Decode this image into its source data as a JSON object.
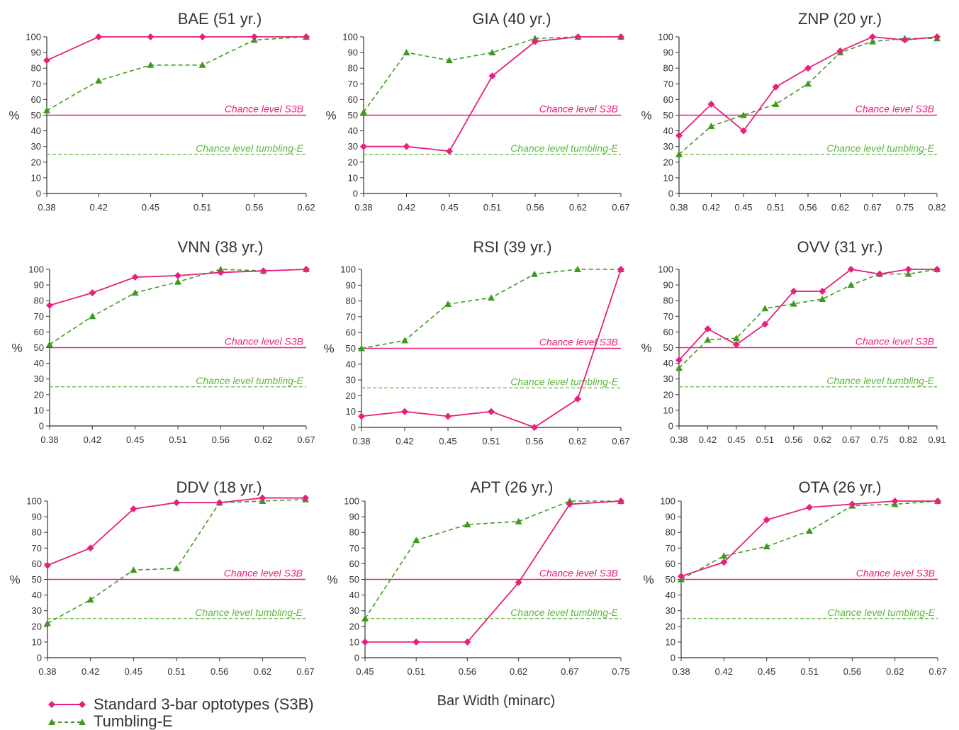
{
  "x_label": "Bar Width (minarc)",
  "y_unit": "%",
  "legend": [
    {
      "label": "Standard 3-bar optotypes (S3B)",
      "color": "#e8207c",
      "marker": "diamond",
      "dash": "solid"
    },
    {
      "label": "Tumbling-E",
      "color": "#3d9a1f",
      "marker": "triangle",
      "dash": "dashed"
    }
  ],
  "chance_lines": [
    {
      "label": "Chance level S3B",
      "value": 50,
      "color": "#e8207c",
      "dash": "solid"
    },
    {
      "label": "Chance level tumbling-E",
      "value": 25,
      "color": "#5cb83c",
      "dash": "dashed"
    }
  ],
  "chart_data": [
    {
      "type": "line",
      "title": "BAE (51 yr.)",
      "categories": [
        "0.38",
        "0.42",
        "0.45",
        "0.51",
        "0.56",
        "0.62"
      ],
      "ylim": [
        0,
        100
      ],
      "yticks": [
        0,
        10,
        20,
        30,
        40,
        50,
        60,
        70,
        80,
        90,
        100
      ],
      "series": [
        {
          "name": "Standard 3-bar optotypes (S3B)",
          "values": [
            85,
            100,
            100,
            100,
            100,
            100
          ]
        },
        {
          "name": "Tumbling-E",
          "values": [
            53,
            72,
            82,
            82,
            98,
            100
          ]
        }
      ]
    },
    {
      "type": "line",
      "title": "GIA (40 yr.)",
      "categories": [
        "0.38",
        "0.42",
        "0.45",
        "0.51",
        "0.56",
        "0.62",
        "0.67"
      ],
      "ylim": [
        0,
        100
      ],
      "yticks": [
        0,
        10,
        20,
        30,
        40,
        50,
        60,
        70,
        80,
        90,
        100
      ],
      "series": [
        {
          "name": "Standard 3-bar optotypes (S3B)",
          "values": [
            30,
            30,
            27,
            75,
            97,
            100,
            100
          ]
        },
        {
          "name": "Tumbling-E",
          "values": [
            52,
            90,
            85,
            90,
            99,
            100,
            100
          ]
        }
      ]
    },
    {
      "type": "line",
      "title": "ZNP (20 yr.)",
      "categories": [
        "0.38",
        "0.42",
        "0.45",
        "0.51",
        "0.56",
        "0.62",
        "0.67",
        "0.75",
        "0.82"
      ],
      "ylim": [
        0,
        100
      ],
      "yticks": [
        0,
        10,
        20,
        30,
        40,
        50,
        60,
        70,
        80,
        90,
        100
      ],
      "series": [
        {
          "name": "Standard 3-bar optotypes (S3B)",
          "values": [
            37,
            57,
            40,
            68,
            80,
            91,
            100,
            98,
            100
          ]
        },
        {
          "name": "Tumbling-E",
          "values": [
            25,
            43,
            50,
            57,
            70,
            90,
            97,
            99,
            99
          ]
        }
      ]
    },
    {
      "type": "line",
      "title": "VNN (38 yr.)",
      "categories": [
        "0.38",
        "0.42",
        "0.45",
        "0.51",
        "0.56",
        "0.62",
        "0.67"
      ],
      "ylim": [
        0,
        100
      ],
      "yticks": [
        0,
        10,
        20,
        30,
        40,
        50,
        60,
        70,
        80,
        90,
        100
      ],
      "series": [
        {
          "name": "Standard 3-bar optotypes (S3B)",
          "values": [
            77,
            85,
            95,
            96,
            98,
            99,
            100
          ]
        },
        {
          "name": "Tumbling-E",
          "values": [
            52,
            70,
            85,
            92,
            100,
            99,
            100
          ]
        }
      ]
    },
    {
      "type": "line",
      "title": "RSI (39 yr.)",
      "categories": [
        "0.38",
        "0.42",
        "0.45",
        "0.51",
        "0.56",
        "0.62",
        "0.67"
      ],
      "ylim": [
        0,
        100
      ],
      "yticks": [
        0,
        10,
        20,
        30,
        40,
        50,
        60,
        70,
        80,
        90,
        100
      ],
      "series": [
        {
          "name": "Standard 3-bar optotypes (S3B)",
          "values": [
            7,
            10,
            7,
            10,
            0,
            18,
            100
          ]
        },
        {
          "name": "Tumbling-E",
          "values": [
            50,
            55,
            78,
            82,
            97,
            100,
            100
          ]
        }
      ]
    },
    {
      "type": "line",
      "title": "OVV (31 yr.)",
      "categories": [
        "0.38",
        "0.42",
        "0.45",
        "0.51",
        "0.56",
        "0.62",
        "0.67",
        "0.75",
        "0.82",
        "0.91"
      ],
      "ylim": [
        0,
        100
      ],
      "yticks": [
        0,
        10,
        20,
        30,
        40,
        50,
        60,
        70,
        80,
        90,
        100
      ],
      "series": [
        {
          "name": "Standard 3-bar optotypes (S3B)",
          "values": [
            42,
            62,
            52,
            65,
            86,
            86,
            100,
            97,
            100,
            100
          ]
        },
        {
          "name": "Tumbling-E",
          "values": [
            37,
            55,
            56,
            75,
            78,
            81,
            90,
            97,
            97,
            100
          ]
        }
      ]
    },
    {
      "type": "line",
      "title": "DDV (18 yr.)",
      "categories": [
        "0.38",
        "0.42",
        "0.45",
        "0.51",
        "0.56",
        "0.62",
        "0.67"
      ],
      "ylim": [
        0,
        100
      ],
      "yticks": [
        0,
        10,
        20,
        30,
        40,
        50,
        60,
        70,
        80,
        90,
        100
      ],
      "series": [
        {
          "name": "Standard 3-bar optotypes (S3B)",
          "values": [
            59,
            70,
            95,
            99,
            99,
            102,
            102
          ]
        },
        {
          "name": "Tumbling-E",
          "values": [
            22,
            37,
            56,
            57,
            99,
            100,
            101
          ]
        }
      ]
    },
    {
      "type": "line",
      "title": "APT (26 yr.)",
      "categories": [
        "0.45",
        "0.51",
        "0.56",
        "0.62",
        "0.67",
        "0.75"
      ],
      "ylim": [
        0,
        100
      ],
      "yticks": [
        0,
        10,
        20,
        30,
        40,
        50,
        60,
        70,
        80,
        90,
        100
      ],
      "series": [
        {
          "name": "Standard 3-bar optotypes (S3B)",
          "values": [
            10,
            10,
            10,
            48,
            98,
            100
          ]
        },
        {
          "name": "Tumbling-E",
          "values": [
            25,
            75,
            85,
            87,
            100,
            100
          ]
        }
      ]
    },
    {
      "type": "line",
      "title": "OTA (26 yr.)",
      "categories": [
        "0.38",
        "0.42",
        "0.45",
        "0.51",
        "0.56",
        "0.62",
        "0.67"
      ],
      "ylim": [
        0,
        100
      ],
      "yticks": [
        0,
        10,
        20,
        30,
        40,
        50,
        60,
        70,
        80,
        90,
        100
      ],
      "series": [
        {
          "name": "Standard 3-bar optotypes (S3B)",
          "values": [
            52,
            61,
            88,
            96,
            98,
            100,
            100
          ]
        },
        {
          "name": "Tumbling-E",
          "values": [
            50,
            65,
            71,
            81,
            97,
            98,
            100
          ]
        }
      ]
    }
  ]
}
